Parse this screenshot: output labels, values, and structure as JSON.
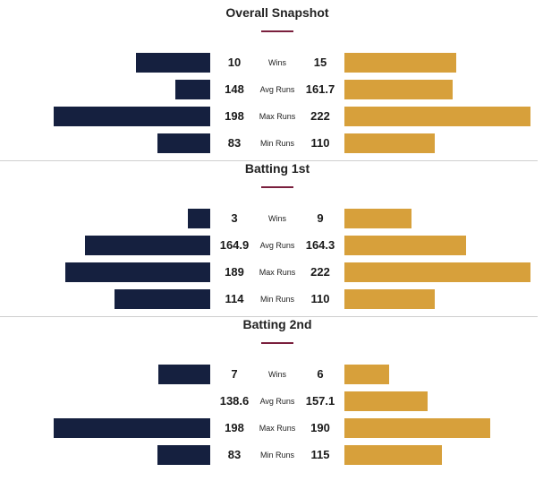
{
  "colors": {
    "left_bar": "#15203f",
    "right_bar": "#d7a03b",
    "accent": "#7a1f3d"
  },
  "chart_data": [
    {
      "type": "bar",
      "title": "Overall Snapshot",
      "categories": [
        "Wins",
        "Avg Runs",
        "Max Runs",
        "Min Runs"
      ],
      "series": [
        {
          "values": [
            10,
            148,
            198,
            83
          ]
        },
        {
          "values": [
            15,
            161.7,
            222,
            110
          ]
        }
      ]
    },
    {
      "type": "bar",
      "title": "Batting 1st",
      "categories": [
        "Wins",
        "Avg Runs",
        "Max Runs",
        "Min Runs"
      ],
      "series": [
        {
          "values": [
            3,
            164.9,
            189,
            114
          ]
        },
        {
          "values": [
            9,
            164.3,
            222,
            110
          ]
        }
      ]
    },
    {
      "type": "bar",
      "title": "Batting 2nd",
      "categories": [
        "Wins",
        "Avg Runs",
        "Max Runs",
        "Min Runs"
      ],
      "series": [
        {
          "values": [
            7,
            138.6,
            198,
            83
          ]
        },
        {
          "values": [
            6,
            157.1,
            190,
            115
          ]
        }
      ]
    }
  ]
}
